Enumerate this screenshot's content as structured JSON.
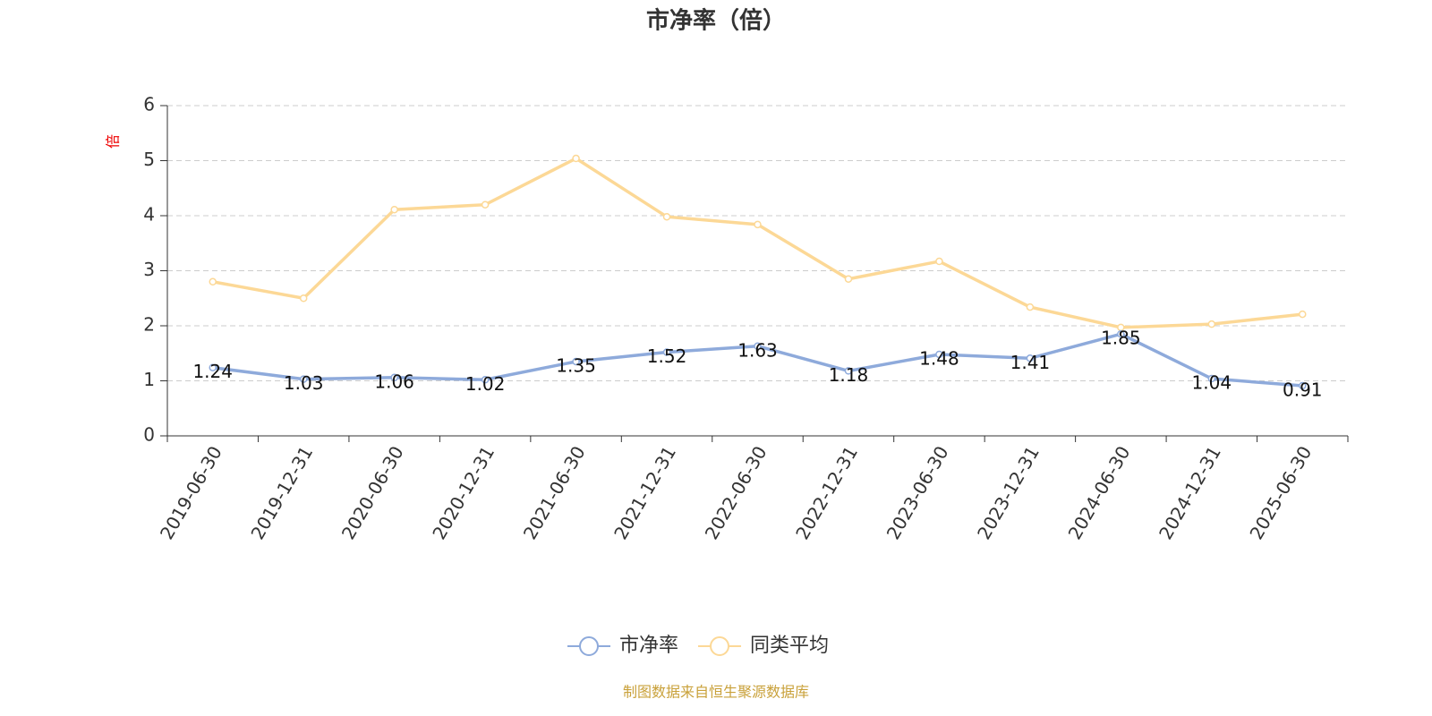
{
  "chart_data": {
    "type": "line",
    "title": "市净率（倍）",
    "y_label": "倍",
    "source": "制图数据来自恒生聚源数据库",
    "categories": [
      "2019-06-30",
      "2019-12-31",
      "2020-06-30",
      "2020-12-31",
      "2021-06-30",
      "2021-12-31",
      "2022-06-30",
      "2022-12-31",
      "2023-06-30",
      "2023-12-31",
      "2024-06-30",
      "2024-12-31",
      "2025-06-30"
    ],
    "series": [
      {
        "name": "市净率",
        "color": "#8eaadb",
        "values": [
          1.24,
          1.03,
          1.06,
          1.02,
          1.35,
          1.52,
          1.63,
          1.18,
          1.48,
          1.41,
          1.85,
          1.04,
          0.91
        ],
        "show_labels": true
      },
      {
        "name": "同类平均",
        "color": "#fcd896",
        "values": [
          2.8,
          2.5,
          4.11,
          4.2,
          5.04,
          3.98,
          3.84,
          2.85,
          3.17,
          2.34,
          1.97,
          2.03,
          2.21
        ],
        "show_labels": false
      }
    ],
    "ylim": [
      0,
      6
    ],
    "yticks": [
      0,
      1,
      2,
      3,
      4,
      5,
      6
    ],
    "grid": true,
    "legend": "bottom"
  }
}
